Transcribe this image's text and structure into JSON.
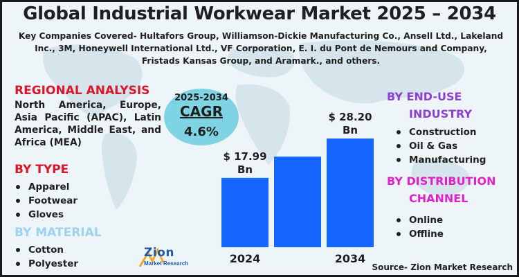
{
  "title": "Global Industrial Workwear Market 2025 – 2034",
  "companies": "Key Companies Covered- Hultafors Group, Williamson-Dickie Manufacturing Co., Ansell Ltd., Lakeland Inc., 3M, Honeywell International Ltd., VF Corporation, E. I. du Pont de Nemours and Company, Fristads Kansas Group, and Aramark., and others.",
  "regional": {
    "title": "REGIONAL ANALYSIS",
    "text": "North America, Europe, Asia Pacific (APAC), Latin America, Middle East, and Africa (MEA)"
  },
  "by_type": {
    "title": "BY TYPE",
    "items": [
      "Apparel",
      "Footwear",
      "Gloves"
    ]
  },
  "by_material": {
    "title": "BY MATERIAL",
    "items": [
      "Cotton",
      "Polyester"
    ]
  },
  "by_end_use": {
    "title_line1": "BY END-USE",
    "title_line2": "INDUSTRY",
    "items": [
      "Construction",
      "Oil & Gas",
      "Manufacturing"
    ]
  },
  "by_distribution": {
    "title_line1": "BY DISTRIBUTION",
    "title_line2": "CHANNEL",
    "items": [
      "Online",
      "Offline"
    ]
  },
  "cagr": {
    "period": "2025-2034",
    "label": "CAGR",
    "value": "4.6%"
  },
  "source": "Source- Zion Market Research",
  "logo": {
    "name": "Zion",
    "sub": "Market Research"
  },
  "colors": {
    "bar": "#1565ff",
    "regional": "#d9162a",
    "type": "#d9162a",
    "material": "#9ed3ee",
    "end_use": "#8d3fd1",
    "distribution": "#e020c8",
    "cagr_circle": "#7fd4e3"
  },
  "chart_data": {
    "type": "bar",
    "categories": [
      "2024",
      "",
      "2034"
    ],
    "values": [
      17.99,
      23.5,
      28.2
    ],
    "value_labels": [
      "$ 17.99",
      "",
      "$ 28.20"
    ],
    "value_units": [
      "Bn",
      "",
      "Bn"
    ],
    "title": "",
    "xlabel": "",
    "ylabel": "",
    "ylim": [
      0,
      28.2
    ]
  }
}
